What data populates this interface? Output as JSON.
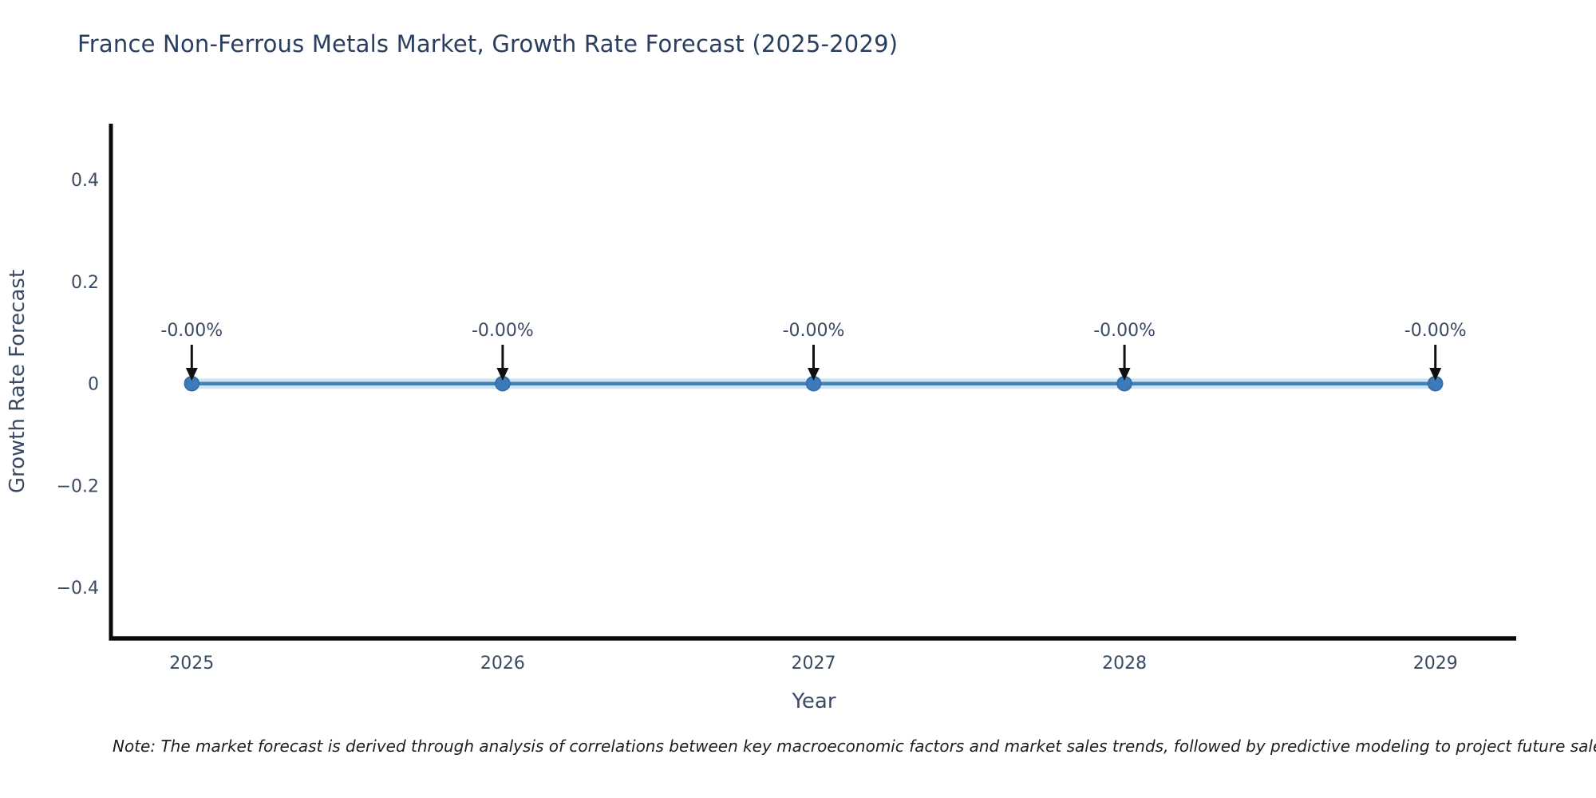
{
  "title": "France Non-Ferrous Metals Market, Growth Rate Forecast (2025-2029)",
  "note": "Note: The market forecast is derived through analysis of correlations between key macroeconomic factors and market sales trends, followed by predictive modeling to project future sales",
  "chart_data": {
    "type": "line",
    "title": "France Non-Ferrous Metals Market, Growth Rate Forecast (2025-2029)",
    "xlabel": "Year",
    "ylabel": "Growth Rate Forecast",
    "x": [
      2025,
      2026,
      2027,
      2028,
      2029
    ],
    "values": [
      0,
      0,
      0,
      0,
      0
    ],
    "point_labels": [
      "-0.00%",
      "-0.00%",
      "-0.00%",
      "-0.00%",
      "-0.00%"
    ],
    "xtick_labels": [
      "2025",
      "2026",
      "2027",
      "2028",
      "2029"
    ],
    "yticks": [
      0.4,
      0.2,
      0,
      -0.2,
      -0.4
    ],
    "ytick_labels": [
      "0.4",
      "0.2",
      "0",
      "−0.2",
      "−0.4"
    ],
    "xlim": [
      2024.74,
      2029.26
    ],
    "ylim": [
      -0.5,
      0.51
    ],
    "grid": false,
    "legend": "none",
    "colors": {
      "line": "#4580b2",
      "band": "rgba(170,206,232,0.55)",
      "marker": "#3d7ab8",
      "marker_edge": "#2f6ba8",
      "axis": "#0a0a0a",
      "tick_text": "#3b4a63",
      "axis_title_text": "#3b4a63",
      "title_text": "#2a3f5f",
      "annotation_text": "#3b4a63",
      "annotation_arrow": "#101010",
      "note_text": "#1f1f1f"
    }
  }
}
